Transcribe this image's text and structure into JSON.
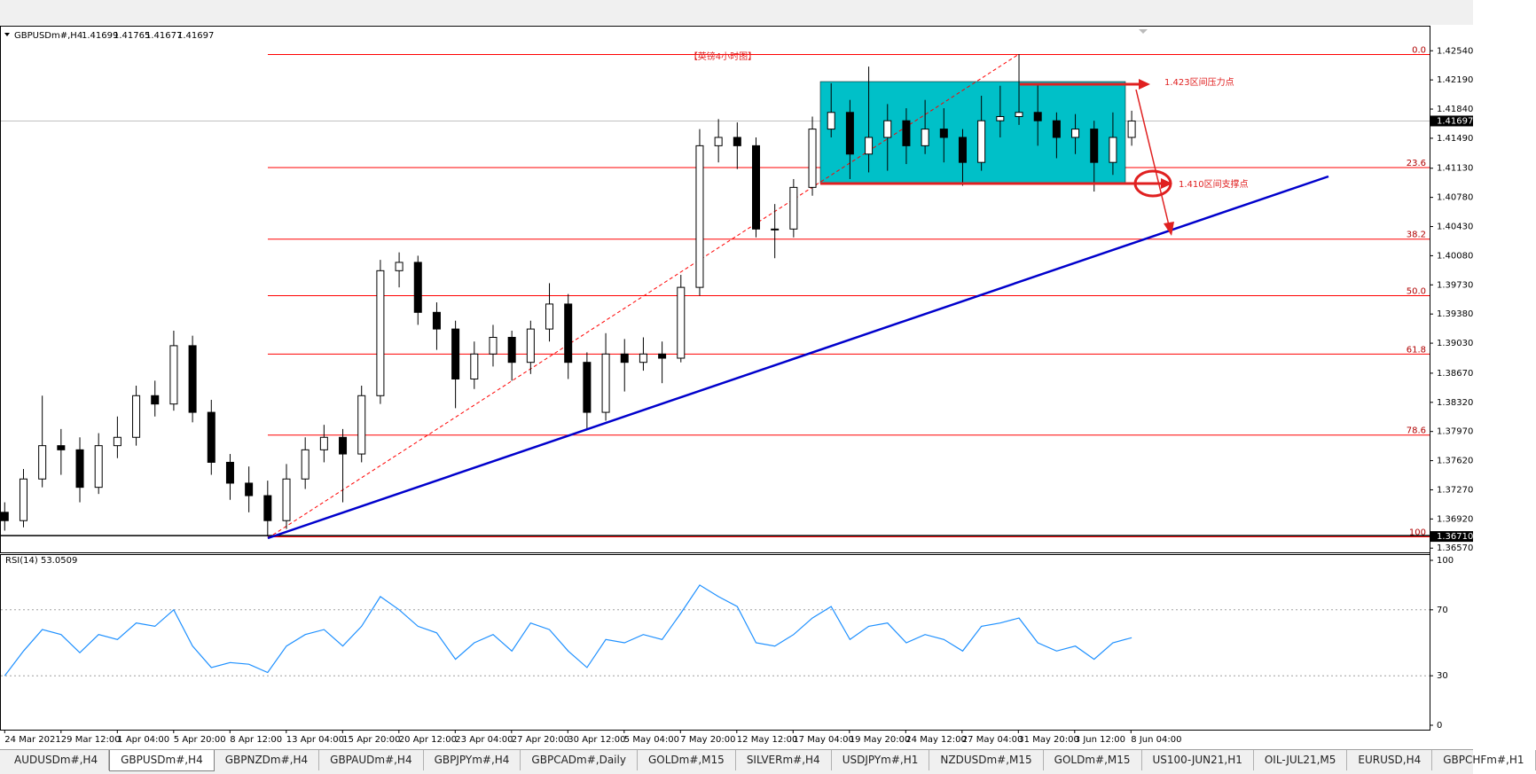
{
  "header": {
    "symbol": "GBPUSDm#,H4",
    "open": 1.41699,
    "high": 1.41765,
    "low": 1.41677,
    "close": 1.41697
  },
  "chart_data": [
    {
      "type": "candlestick",
      "open": [
        1.37,
        1.369,
        1.374,
        1.378,
        1.3775,
        1.373,
        1.378,
        1.379,
        1.384,
        1.383,
        1.39,
        1.382,
        1.376,
        1.3735,
        1.372,
        1.369,
        1.374,
        1.3775,
        1.379,
        1.377,
        1.384,
        1.399,
        1.4,
        1.394,
        1.392,
        1.386,
        1.389,
        1.391,
        1.388,
        1.392,
        1.395,
        1.388,
        1.382,
        1.389,
        1.388,
        1.389,
        1.3885,
        1.397,
        1.414,
        1.415,
        1.414,
        1.404,
        1.404,
        1.409,
        1.416,
        1.418,
        1.413,
        1.415,
        1.417,
        1.414,
        1.416,
        1.415,
        1.412,
        1.417,
        1.4175,
        1.418,
        1.417,
        1.415,
        1.416,
        1.412,
        1.415
      ],
      "high": [
        1.3712,
        1.3752,
        1.384,
        1.38,
        1.379,
        1.3795,
        1.3815,
        1.3852,
        1.3858,
        1.3918,
        1.3912,
        1.3835,
        1.377,
        1.3755,
        1.3738,
        1.3758,
        1.379,
        1.3805,
        1.38,
        1.3852,
        1.4003,
        1.4012,
        1.4008,
        1.3952,
        1.393,
        1.3905,
        1.3925,
        1.3918,
        1.393,
        1.3975,
        1.3962,
        1.3892,
        1.3915,
        1.3908,
        1.391,
        1.3905,
        1.3985,
        1.416,
        1.4172,
        1.4168,
        1.415,
        1.407,
        1.41,
        1.4175,
        1.4215,
        1.4195,
        1.4235,
        1.419,
        1.4185,
        1.4195,
        1.4185,
        1.416,
        1.42,
        1.4212,
        1.425,
        1.4215,
        1.418,
        1.4178,
        1.417,
        1.418,
        1.4182
      ],
      "low": [
        1.3678,
        1.3682,
        1.373,
        1.3745,
        1.3712,
        1.3722,
        1.3765,
        1.378,
        1.3815,
        1.3822,
        1.3808,
        1.3745,
        1.3715,
        1.37,
        1.3671,
        1.368,
        1.3728,
        1.376,
        1.3712,
        1.376,
        1.383,
        1.397,
        1.3925,
        1.3895,
        1.3825,
        1.3848,
        1.3875,
        1.3858,
        1.3866,
        1.3905,
        1.386,
        1.38,
        1.381,
        1.3845,
        1.387,
        1.3855,
        1.388,
        1.396,
        1.412,
        1.4112,
        1.403,
        1.4005,
        1.403,
        1.408,
        1.415,
        1.41,
        1.4108,
        1.411,
        1.4118,
        1.413,
        1.412,
        1.4092,
        1.411,
        1.415,
        1.4165,
        1.414,
        1.4125,
        1.413,
        1.4085,
        1.4105,
        1.414
      ],
      "close": [
        1.369,
        1.374,
        1.378,
        1.3775,
        1.373,
        1.378,
        1.379,
        1.384,
        1.383,
        1.39,
        1.382,
        1.376,
        1.3735,
        1.372,
        1.369,
        1.374,
        1.3775,
        1.379,
        1.377,
        1.384,
        1.399,
        1.4,
        1.394,
        1.392,
        1.386,
        1.389,
        1.391,
        1.388,
        1.392,
        1.395,
        1.388,
        1.382,
        1.389,
        1.388,
        1.389,
        1.3885,
        1.397,
        1.414,
        1.415,
        1.414,
        1.404,
        1.404,
        1.409,
        1.416,
        1.418,
        1.413,
        1.415,
        1.417,
        1.414,
        1.416,
        1.415,
        1.412,
        1.417,
        1.4175,
        1.418,
        1.417,
        1.415,
        1.416,
        1.412,
        1.415,
        1.41697
      ],
      "ylim": [
        1.3653,
        1.4283
      ],
      "yticks": [
        {
          "value": 1.4254,
          "label": "1.42540"
        },
        {
          "value": 1.4219,
          "label": "1.42190"
        },
        {
          "value": 1.4184,
          "label": "1.41840"
        },
        {
          "value": 1.4149,
          "label": "1.41490"
        },
        {
          "value": 1.4113,
          "label": "1.41130"
        },
        {
          "value": 1.4078,
          "label": "1.40780"
        },
        {
          "value": 1.4043,
          "label": "1.40430"
        },
        {
          "value": 1.4008,
          "label": "1.40080"
        },
        {
          "value": 1.3973,
          "label": "1.39730"
        },
        {
          "value": 1.3938,
          "label": "1.39380"
        },
        {
          "value": 1.3903,
          "label": "1.39030"
        },
        {
          "value": 1.3867,
          "label": "1.38670"
        },
        {
          "value": 1.3832,
          "label": "1.38320"
        },
        {
          "value": 1.3797,
          "label": "1.37970"
        },
        {
          "value": 1.3762,
          "label": "1.37620"
        },
        {
          "value": 1.3727,
          "label": "1.37270"
        },
        {
          "value": 1.3692,
          "label": "1.36920"
        },
        {
          "value": 1.3657,
          "label": "1.36570"
        }
      ],
      "xtick_labels": [
        "24 Mar 2021",
        "29 Mar 12:00",
        "1 Apr 04:00",
        "5 Apr 20:00",
        "8 Apr 12:00",
        "13 Apr 04:00",
        "15 Apr 20:00",
        "20 Apr 12:00",
        "23 Apr 04:00",
        "27 Apr 20:00",
        "30 Apr 12:00",
        "5 May 04:00",
        "7 May 20:00",
        "12 May 12:00",
        "17 May 04:00",
        "19 May 20:00",
        "24 May 12:00",
        "27 May 04:00",
        "31 May 20:00",
        "3 Jun 12:00",
        "8 Jun 04:00"
      ],
      "fib_levels": [
        {
          "label": "0.0",
          "price": 1.42495
        },
        {
          "label": "23.6",
          "price": 1.41138
        },
        {
          "label": "38.2",
          "price": 1.40279
        },
        {
          "label": "50.0",
          "price": 1.396
        },
        {
          "label": "61.8",
          "price": 1.38899
        },
        {
          "label": "78.6",
          "price": 1.37927
        },
        {
          "label": "100",
          "price": 1.36706
        }
      ],
      "price_labels": [
        1.41697,
        {
          "value": 1.3671,
          "label": "1.36710"
        }
      ],
      "annotations": [
        "【英镑4小时图】",
        "1.423区间压力点",
        "1.410区间支撑点"
      ]
    },
    {
      "type": "line",
      "title": "RSI(14) 53.0509",
      "color": "#1e90ff",
      "values": [
        30,
        45,
        58,
        55,
        44,
        55,
        52,
        62,
        60,
        70,
        48,
        35,
        38,
        37,
        32,
        48,
        55,
        58,
        48,
        60,
        78,
        70,
        60,
        56,
        40,
        50,
        55,
        45,
        62,
        58,
        45,
        35,
        52,
        50,
        55,
        52,
        68,
        85,
        78,
        72,
        50,
        48,
        55,
        65,
        72,
        52,
        60,
        62,
        50,
        55,
        52,
        45,
        60,
        62,
        65,
        50,
        45,
        48,
        40,
        50,
        53.05
      ],
      "ylim": [
        0,
        100
      ],
      "yticks": [
        100,
        70,
        30,
        0
      ],
      "levels": [
        70,
        30
      ]
    }
  ],
  "tabs": [
    "AUDUSDm#,H4",
    "GBPUSDm#,H4",
    "GBPNZDm#,H4",
    "GBPAUDm#,H4",
    "GBPJPYm#,H4",
    "GBPCADm#,Daily",
    "GOLDm#,M15",
    "SILVERm#,H4",
    "USDJPYm#,H1",
    "NZDUSDm#,M15",
    "GOLDm#,M15",
    "US100-JUN21,H1",
    "OIL-JUL21,M5",
    "EURUSD,H4",
    "GBPCHFm#,H1"
  ],
  "active_tab": 1
}
